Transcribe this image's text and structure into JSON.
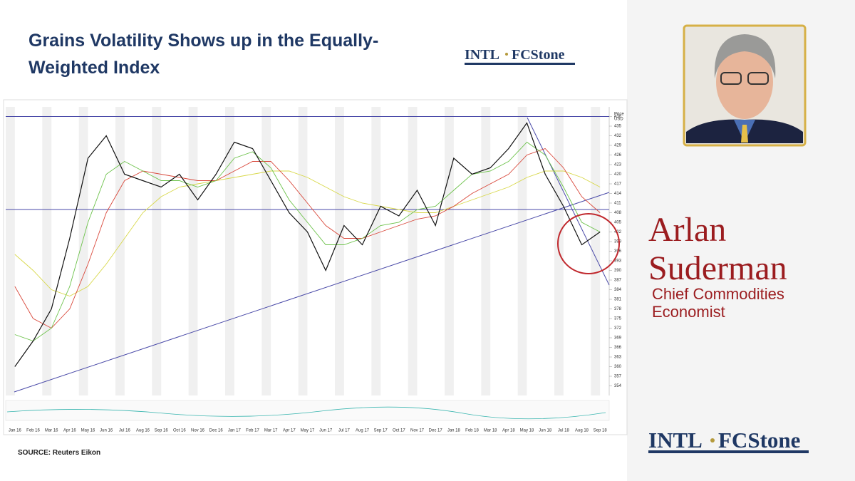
{
  "slide": {
    "title_lines": [
      "Grains Volatility Shows up in the Equally-",
      "Weighted Index"
    ],
    "logo": "INTL",
    "logo_brand": "FCStone",
    "source": "SOURCE: Reuters Eikon"
  },
  "speaker": {
    "name_lines": [
      "Arlan",
      "Suderman"
    ],
    "role_lines": [
      "Chief Commodities",
      "Economist"
    ]
  },
  "chart_data": {
    "type": "line",
    "y_label": "Price",
    "y_unit": "USD",
    "categories": [
      "Jan 16",
      "Feb 16",
      "Mar 16",
      "Apr 16",
      "May 16",
      "Jun 16",
      "Jul 16",
      "Aug 16",
      "Sep 16",
      "Oct 16",
      "Nov 16",
      "Dec 16",
      "Jan 17",
      "Feb 17",
      "Mar 17",
      "Apr 17",
      "May 17",
      "Jun 17",
      "Jul 17",
      "Aug 17",
      "Sep 17",
      "Oct 17",
      "Nov 17",
      "Dec 17",
      "Jan 18",
      "Feb 18",
      "Mar 18",
      "Apr 18",
      "May 18",
      "Jun 18",
      "Jul 18",
      "Aug 18",
      "Sep 18"
    ],
    "series": [
      {
        "color": "#111111",
        "values": [
          360,
          368,
          378,
          400,
          425,
          432,
          420,
          418,
          416,
          420,
          412,
          420,
          430,
          428,
          418,
          408,
          402,
          390,
          404,
          398,
          410,
          407,
          415,
          404,
          425,
          420,
          422,
          428,
          436,
          420,
          410,
          398,
          402
        ]
      },
      {
        "color": "#6cc24a",
        "values": [
          370,
          368,
          372,
          385,
          405,
          420,
          424,
          421,
          418,
          418,
          416,
          418,
          425,
          427,
          422,
          412,
          405,
          398,
          398,
          400,
          404,
          405,
          409,
          410,
          415,
          420,
          421,
          424,
          430,
          426,
          416,
          405,
          402
        ]
      },
      {
        "color": "#d9483b",
        "values": [
          385,
          375,
          372,
          378,
          392,
          408,
          418,
          421,
          420,
          419,
          418,
          418,
          421,
          424,
          424,
          418,
          411,
          404,
          400,
          400,
          402,
          404,
          406,
          407,
          410,
          414,
          417,
          420,
          426,
          428,
          422,
          413,
          408
        ]
      },
      {
        "color": "#d8d84a",
        "values": [
          395,
          390,
          384,
          382,
          385,
          392,
          400,
          408,
          413,
          416,
          417,
          418,
          419,
          420,
          421,
          421,
          419,
          416,
          413,
          411,
          410,
          409,
          408,
          408,
          410,
          412,
          414,
          416,
          419,
          421,
          421,
          419,
          416
        ]
      }
    ],
    "horizontal_lines": [
      438,
      409
    ],
    "ylim": [
      351,
      441
    ],
    "yticks": [
      354,
      357,
      360,
      363,
      366,
      369,
      372,
      375,
      378,
      381,
      384,
      387,
      390,
      393,
      396,
      399,
      402,
      405,
      408,
      411,
      414,
      417,
      420,
      423,
      426,
      429,
      432,
      435,
      438
    ]
  }
}
